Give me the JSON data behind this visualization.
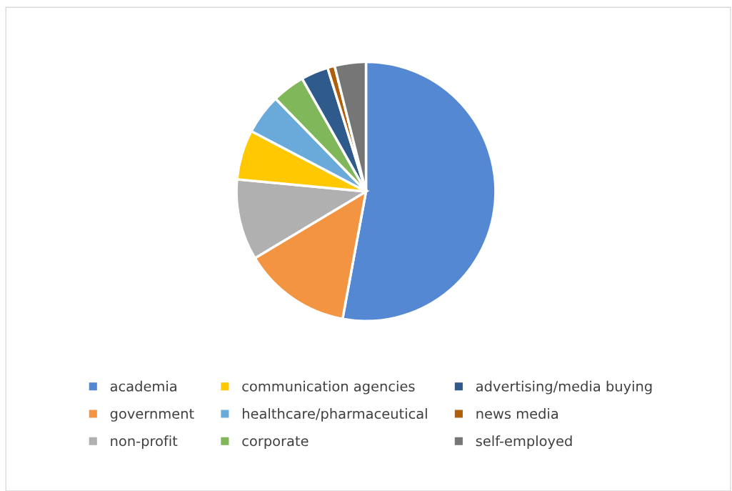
{
  "chart_data": {
    "type": "pie",
    "categories": [
      "academia",
      "government",
      "non-profit",
      "communication agencies",
      "healthcare/pharmaceutical",
      "corporate",
      "advertising/media buying",
      "news media",
      "self-employed"
    ],
    "values": [
      52.9,
      13.5,
      10.1,
      6.2,
      5.0,
      4.1,
      3.4,
      0.9,
      3.9
    ],
    "colors": [
      "#5588d2",
      "#f29441",
      "#b0b0b0",
      "#ffc800",
      "#6aaadb",
      "#80b75a",
      "#2f5a8c",
      "#b05e0c",
      "#767676"
    ],
    "legend": "bottom"
  }
}
